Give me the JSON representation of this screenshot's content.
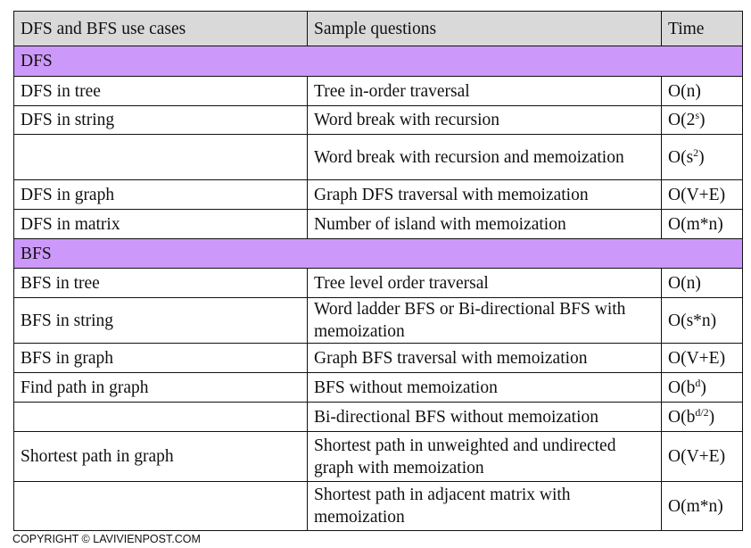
{
  "header": [
    "DFS and BFS use cases",
    "Sample questions",
    "Time"
  ],
  "colors": {
    "header_bg": "#d9d9d9",
    "section_bg": "#cc99fa"
  },
  "rows": [
    {
      "type": "section",
      "label": "DFS"
    },
    {
      "type": "data",
      "case": "DFS in tree",
      "question": "Tree in-order traversal",
      "time": "O(n)",
      "time_sup": "",
      "time_end": ""
    },
    {
      "type": "data",
      "case": "DFS in string",
      "question": "Word break with recursion",
      "time": "O(2",
      "time_sup": "s",
      "time_end": ")"
    },
    {
      "type": "data",
      "case": "",
      "question": "Word break with recursion and memoization",
      "time": "O(s",
      "time_sup": "2",
      "time_end": ")"
    },
    {
      "type": "data",
      "case": "DFS in graph",
      "question": "Graph DFS traversal  with memoization",
      "time": "O(V+E)",
      "time_sup": "",
      "time_end": ""
    },
    {
      "type": "data",
      "case": "DFS in matrix",
      "question": "Number of island  with memoization",
      "time": "O(m*n)",
      "time_sup": "",
      "time_end": ""
    },
    {
      "type": "section",
      "label": "BFS"
    },
    {
      "type": "data",
      "case": "BFS in tree",
      "question": "Tree level order traversal",
      "time": "O(n)",
      "time_sup": "",
      "time_end": ""
    },
    {
      "type": "data",
      "case": "BFS in string",
      "question": "Word ladder BFS or Bi-directional BFS with memoization",
      "time": "O(s*n)",
      "time_sup": "",
      "time_end": ""
    },
    {
      "type": "data",
      "case": "BFS in graph",
      "question": "Graph BFS traversal with memoization",
      "time": "O(V+E)",
      "time_sup": "",
      "time_end": ""
    },
    {
      "type": "data",
      "case": "Find path in graph",
      "question": "BFS without  memoization",
      "time": "O(b",
      "time_sup": "d",
      "time_end": ")"
    },
    {
      "type": "data",
      "case": "",
      "question": "Bi-directional BFS  without  memoization",
      "time": "O(b",
      "time_sup": "d/2",
      "time_end": ")"
    },
    {
      "type": "data",
      "case": "Shortest path in graph",
      "question": "Shortest path in unweighted and undirected graph with memoization",
      "time": "O(V+E)",
      "time_sup": "",
      "time_end": ""
    },
    {
      "type": "data",
      "case": "",
      "question": "Shortest path in adjacent matrix  with memoization",
      "time": "O(m*n)",
      "time_sup": "",
      "time_end": ""
    }
  ],
  "footer": {
    "copyright": "COPYRIGHT © LAVIVIENPOST.COM"
  }
}
